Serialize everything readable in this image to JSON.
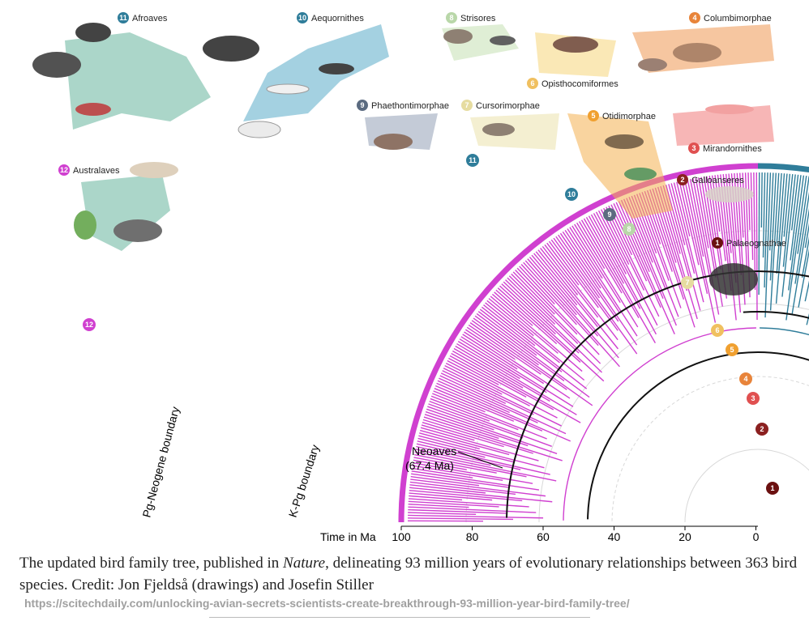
{
  "clades": [
    {
      "num": "11",
      "name": "Afroaves",
      "color": "#2f7d9a"
    },
    {
      "num": "10",
      "name": "Aequornithes",
      "color": "#2f7d9a"
    },
    {
      "num": "8",
      "name": "Strisores",
      "color": "#b9d7a9"
    },
    {
      "num": "4",
      "name": "Columbimorphae",
      "color": "#e8843a"
    },
    {
      "num": "6",
      "name": "Opisthocomiformes",
      "color": "#f0c060"
    },
    {
      "num": "9",
      "name": "Phaethontimorphae",
      "color": "#5b6b80"
    },
    {
      "num": "7",
      "name": "Cursorimorphae",
      "color": "#e6dca0"
    },
    {
      "num": "5",
      "name": "Otidimorphae",
      "color": "#f0a030"
    },
    {
      "num": "3",
      "name": "Mirandornithes",
      "color": "#e05050"
    },
    {
      "num": "12",
      "name": "Australaves",
      "color": "#d040d0"
    },
    {
      "num": "2",
      "name": "Galloanseres",
      "color": "#8b2020"
    },
    {
      "num": "1",
      "name": "Palaeognathae",
      "color": "#6b1010"
    }
  ],
  "arc_numbers": [
    "11",
    "10",
    "9",
    "8",
    "7",
    "6",
    "5",
    "4",
    "3",
    "2",
    "1",
    "12"
  ],
  "annotations": {
    "neoaves": "Neoaves",
    "neoaves_age": "(67.4 Ma)",
    "pg_neogene": "Pg-Neogene boundary",
    "kpg": "K-Pg boundary"
  },
  "axis": {
    "label": "Time in Ma",
    "ticks": [
      "100",
      "80",
      "60",
      "40",
      "20",
      "0"
    ]
  },
  "caption": {
    "part1": "The updated bird family tree, published in ",
    "journal": "Nature",
    "part2": ", delineating 93 million years of evolutionary relationships between 363 bird species. Credit: Jon Fjeldså (drawings) and Josefin Stiller"
  },
  "source_url": "https://scitechdaily.com/unlocking-avian-secrets-scientists-create-breakthrough-93-million-year-bird-family-tree/"
}
